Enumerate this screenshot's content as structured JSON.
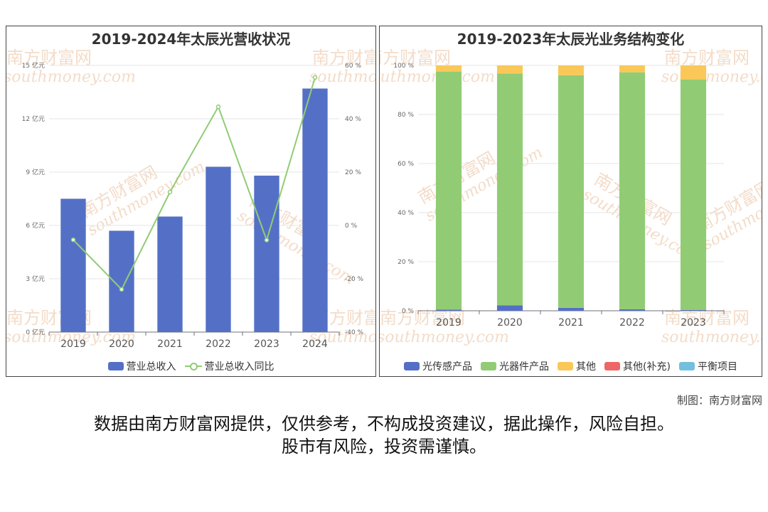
{
  "left_panel": {
    "title": "2019-2024年太辰光营收状况",
    "legend": [
      {
        "label": "营业总收入",
        "color": "#5470c6",
        "kind": "bar"
      },
      {
        "label": "营业总收入同比",
        "color": "#91cc75",
        "kind": "line"
      }
    ]
  },
  "right_panel": {
    "title": "2019-2023年太辰光业务结构变化",
    "legend": [
      {
        "label": "光传感产品",
        "color": "#5470c6"
      },
      {
        "label": "光器件产品",
        "color": "#91cc75"
      },
      {
        "label": "其他",
        "color": "#fac858"
      },
      {
        "label": "其他(补充)",
        "color": "#ee6666"
      },
      {
        "label": "平衡项目",
        "color": "#73c0de"
      }
    ]
  },
  "watermark": {
    "cn": "南方财富网",
    "en": "southmoney.com"
  },
  "credit": "制图：南方财富网",
  "disclaimer": {
    "line1": "数据由南方财富网提供，仅供参考，不构成投资建议，据此操作，风险自担。",
    "line2": "股市有风险，投资需谨慎。"
  },
  "chart_data": [
    {
      "type": "bar",
      "title": "2019-2024年太辰光营收状况",
      "categories": [
        "2019",
        "2020",
        "2021",
        "2022",
        "2023",
        "2024"
      ],
      "y_left": {
        "ticks": [
          "0 亿元",
          "3 亿元",
          "6 亿元",
          "9 亿元",
          "12 亿元",
          "15 亿元"
        ],
        "range": [
          0,
          15
        ]
      },
      "y_right": {
        "ticks": [
          "-40 %",
          "-20 %",
          "0 %",
          "20 %",
          "40 %",
          "60 %"
        ],
        "range": [
          -40,
          60
        ]
      },
      "series": [
        {
          "name": "营业总收入",
          "type": "bar",
          "axis": "left",
          "values": [
            7.5,
            5.7,
            6.5,
            9.3,
            8.8,
            13.7
          ]
        },
        {
          "name": "营业总收入同比",
          "type": "line",
          "axis": "right",
          "values": [
            -5.4,
            -24.0,
            12.5,
            44.5,
            -5.5,
            55.5
          ]
        }
      ]
    },
    {
      "type": "bar",
      "stacked": true,
      "title": "2019-2023年太辰光业务结构变化",
      "categories": [
        "2019",
        "2020",
        "2021",
        "2022",
        "2023"
      ],
      "y": {
        "ticks": [
          "0 %",
          "20 %",
          "40 %",
          "60 %",
          "80 %",
          "100 %"
        ],
        "range": [
          0,
          100
        ]
      },
      "series": [
        {
          "name": "光传感产品",
          "values": [
            0.5,
            2.2,
            1.2,
            0.6,
            0.3
          ]
        },
        {
          "name": "光器件产品",
          "values": [
            97.0,
            94.5,
            94.8,
            96.6,
            94.0
          ]
        },
        {
          "name": "其他",
          "values": [
            2.5,
            3.3,
            4.0,
            2.8,
            5.7
          ]
        },
        {
          "name": "其他(补充)",
          "values": [
            0,
            0,
            0,
            0,
            0
          ]
        },
        {
          "name": "平衡项目",
          "values": [
            0,
            0,
            0,
            0,
            0
          ]
        }
      ]
    }
  ]
}
